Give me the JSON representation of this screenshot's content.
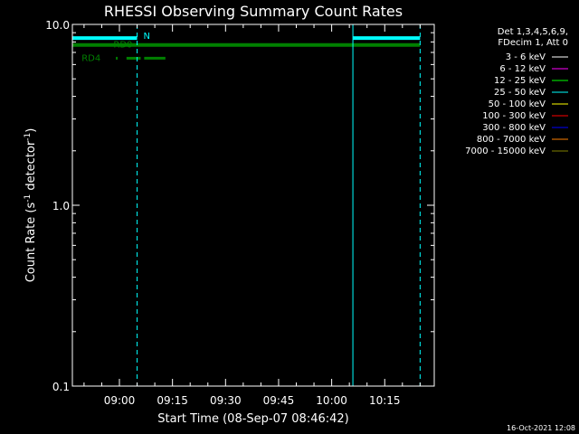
{
  "colors": {
    "background": "#000000",
    "foreground": "#ffffff",
    "cyan": "#00ffff",
    "green": "#008000"
  },
  "chart_data": {
    "type": "line",
    "title": "RHESSI Observing Summary Count Rates",
    "xlabel": "Start Time (08-Sep-07 08:46:42)",
    "ylabel": "Count Rate (s",
    "ylabel_sup1": "-1",
    "ylabel_mid": " detector",
    "ylabel_sup2": "-1",
    "ylabel_end": ")",
    "yscale": "log",
    "ylim": [
      0.1,
      10.0
    ],
    "xlim": [
      "08:46:42",
      "10:29:00"
    ],
    "x_ticks": [
      "09:00",
      "09:15",
      "09:30",
      "09:45",
      "10:00",
      "10:15"
    ],
    "y_ticks": [
      "10.0",
      "1.0",
      "0.1"
    ],
    "legend_position": "right",
    "legend_header": [
      "Det 1,3,4,5,6,9,",
      "FDecim 1, Att 0"
    ],
    "legend": [
      {
        "label": "3 - 6 keV",
        "color": "#ffffff"
      },
      {
        "label": "6 - 12 keV",
        "color": "#ff00ff"
      },
      {
        "label": "12 - 25 keV",
        "color": "#00ff00"
      },
      {
        "label": "25 - 50 keV",
        "color": "#00ffff"
      },
      {
        "label": "50 - 100 keV",
        "color": "#ffff00"
      },
      {
        "label": "100 - 300 keV",
        "color": "#ff0000"
      },
      {
        "label": "300 - 800 keV",
        "color": "#0000ff"
      },
      {
        "label": "800 - 7000 keV",
        "color": "#ff8000"
      },
      {
        "label": "7000 - 15000 keV",
        "color": "#808000"
      }
    ],
    "vlines_solid": [
      "08:46:42",
      "10:06:00"
    ],
    "vlines_dashed": [
      "09:05:00",
      "10:25:00"
    ],
    "flag_bars": [
      {
        "label": "N",
        "color": "#00ffff",
        "y": 8.4,
        "segments": [
          [
            "08:46:42",
            "09:05:00"
          ],
          [
            "10:06:00",
            "10:25:00"
          ]
        ]
      },
      {
        "label": "",
        "color": "#008000",
        "y": 7.7,
        "segments": [
          [
            "08:46:42",
            "10:25:00"
          ]
        ]
      }
    ],
    "flag_labels": [
      {
        "label": "RD0",
        "color": "#008000",
        "time": "09:01:00",
        "y": 7.7,
        "segments": [
          [
            "08:58:00",
            "08:59:00"
          ],
          [
            "09:07:00",
            "09:08:00"
          ]
        ]
      },
      {
        "label": "RD4",
        "color": "#008000",
        "time": "08:52:00",
        "y": 6.5,
        "segments": [
          [
            "08:59:00",
            "08:59:30"
          ],
          [
            "09:02:00",
            "09:06:00"
          ],
          [
            "09:07:00",
            "09:13:00"
          ]
        ]
      }
    ],
    "timestamp": "16-Oct-2021 12:08"
  }
}
